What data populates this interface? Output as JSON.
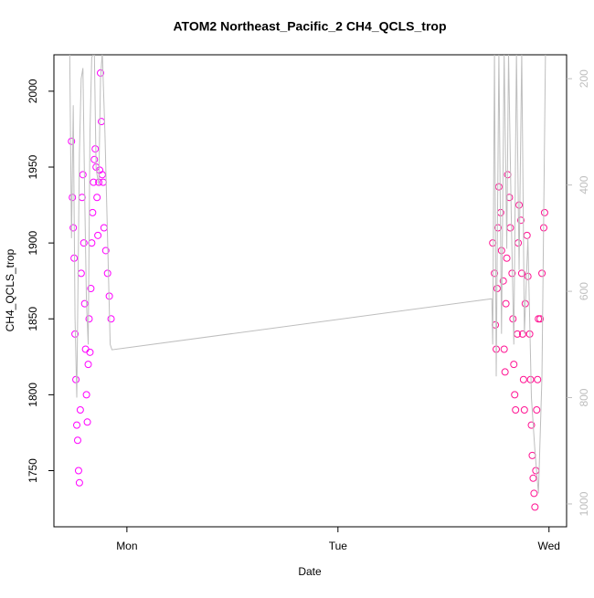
{
  "chart_data": {
    "type": "scatter",
    "title": "ATOM2 Northeast_Pacific_2 CH4_QCLS_trop",
    "x_label": "Date",
    "y_label": "CH4_QCLS_trop",
    "xlim": [
      -8.3,
      50
    ],
    "xticks": [
      {
        "value": 0,
        "label": "Mon"
      },
      {
        "value": 24,
        "label": "Tue"
      },
      {
        "value": 48,
        "label": "Wed"
      }
    ],
    "ylim": [
      1713,
      2024
    ],
    "yticks": [
      1750,
      1800,
      1850,
      1900,
      1950,
      2000
    ],
    "y2lim": [
      1043,
      155
    ],
    "y2ticks": [
      200,
      400,
      600,
      800,
      1000
    ],
    "series": [
      {
        "color": "#ff00ff",
        "x": [
          -6.3,
          -6.2,
          -6.1,
          -6.0,
          -5.9,
          -5.8,
          -5.7,
          -5.6,
          -5.5,
          -5.4,
          -5.3,
          -5.2,
          -5.1,
          -5.0,
          -4.9,
          -4.8,
          -4.7,
          -4.6,
          -4.5,
          -4.4,
          -4.3,
          -4.2,
          -4.1,
          -4.0,
          -3.9,
          -3.8,
          -3.7,
          -3.6,
          -3.5,
          -3.4,
          -3.3,
          -3.2,
          -3.1,
          -3.0,
          -2.9,
          -2.8,
          -2.7,
          -2.6,
          -2.4,
          -2.2,
          -2.0,
          -1.8
        ],
        "values": [
          1967,
          1930,
          1910,
          1890,
          1840,
          1810,
          1780,
          1770,
          1750,
          1742,
          1790,
          1880,
          1930,
          1945,
          1900,
          1860,
          1830,
          1800,
          1782,
          1820,
          1850,
          1828,
          1870,
          1900,
          1920,
          1940,
          1955,
          1962,
          1950,
          1930,
          1905,
          1940,
          1948,
          2012,
          1980,
          1945,
          1940,
          1910,
          1895,
          1880,
          1865,
          1850
        ]
      },
      {
        "color": "#ff1493",
        "x": [
          41.6,
          41.8,
          41.9,
          42.0,
          42.1,
          42.2,
          42.3,
          42.5,
          42.6,
          42.8,
          42.9,
          43.0,
          43.1,
          43.2,
          43.3,
          43.5,
          43.6,
          43.8,
          43.9,
          44.0,
          44.1,
          44.2,
          44.4,
          44.5,
          44.6,
          44.8,
          44.9,
          45.0,
          45.1,
          45.2,
          45.3,
          45.5,
          45.6,
          45.8,
          45.9,
          46.0,
          46.1,
          46.2,
          46.3,
          46.4,
          46.5,
          46.6,
          46.7,
          46.8,
          47.0,
          47.2,
          47.4,
          47.5
        ],
        "values": [
          1900,
          1880,
          1846,
          1830,
          1870,
          1910,
          1937,
          1920,
          1895,
          1875,
          1830,
          1815,
          1860,
          1890,
          1945,
          1930,
          1910,
          1880,
          1850,
          1820,
          1800,
          1790,
          1840,
          1900,
          1925,
          1915,
          1880,
          1840,
          1810,
          1790,
          1860,
          1905,
          1878,
          1840,
          1810,
          1780,
          1760,
          1745,
          1735,
          1726,
          1750,
          1790,
          1810,
          1850,
          1850,
          1880,
          1910,
          1920
        ]
      },
      {
        "color": "#bebebe",
        "axis": "y2",
        "x": [
          -6.5,
          -6.3,
          -6.1,
          -5.9,
          -5.7,
          -5.4,
          -5.2,
          -5.0,
          -4.8,
          -4.6,
          -4.4,
          -4.2,
          -4.0,
          -3.7,
          -3.5,
          -3.2,
          -3.0,
          -2.8,
          -2.5,
          -2.2,
          -1.9,
          -1.7,
          41.5,
          41.6,
          41.8,
          42.0,
          42.3,
          42.6,
          42.9,
          43.2,
          43.4,
          43.7,
          44.0,
          44.3,
          44.6,
          44.9,
          45.2,
          45.6,
          46.0,
          46.4,
          46.8,
          47.2,
          47.6
        ],
        "values": [
          155,
          500,
          250,
          650,
          800,
          340,
          200,
          180,
          420,
          620,
          700,
          300,
          160,
          150,
          370,
          400,
          200,
          150,
          300,
          500,
          700,
          710,
          614,
          700,
          150,
          760,
          150,
          680,
          150,
          520,
          150,
          450,
          700,
          150,
          560,
          150,
          680,
          500,
          800,
          900,
          980,
          760,
          150
        ]
      }
    ]
  }
}
